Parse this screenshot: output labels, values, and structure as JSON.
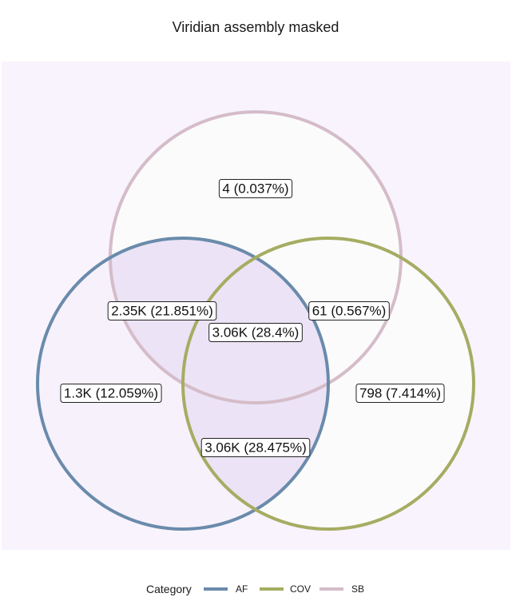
{
  "title": "Viridian assembly masked",
  "legend": {
    "title": "Category",
    "items": [
      {
        "label": "AF",
        "color": "#6a8bab"
      },
      {
        "label": "COV",
        "color": "#a6ac62"
      },
      {
        "label": "SB",
        "color": "#d5bcc9"
      }
    ]
  },
  "sets": [
    "AF",
    "COV",
    "SB"
  ],
  "regions": [
    {
      "id": "sb-only",
      "sets": [
        "SB"
      ],
      "label": "4 (0.037%)",
      "count": 4,
      "percent": 0.037
    },
    {
      "id": "af-sb",
      "sets": [
        "AF",
        "SB"
      ],
      "label": "2.35K (21.851%)",
      "count": 2350,
      "percent": 21.851
    },
    {
      "id": "cov-sb",
      "sets": [
        "COV",
        "SB"
      ],
      "label": "61 (0.567%)",
      "count": 61,
      "percent": 0.567
    },
    {
      "id": "af-cov-sb",
      "sets": [
        "AF",
        "COV",
        "SB"
      ],
      "label": "3.06K (28.4%)",
      "count": 3060,
      "percent": 28.4
    },
    {
      "id": "af-only",
      "sets": [
        "AF"
      ],
      "label": "1.3K (12.059%)",
      "count": 1300,
      "percent": 12.059
    },
    {
      "id": "cov-only",
      "sets": [
        "COV"
      ],
      "label": "798 (7.414%)",
      "count": 798,
      "percent": 7.414
    },
    {
      "id": "af-cov",
      "sets": [
        "AF",
        "COV"
      ],
      "label": "3.06K (28.475%)",
      "count": 3060,
      "percent": 28.475
    }
  ],
  "colors": {
    "panel_background": "#f8f3fd",
    "region_fill_low": "#fbfbfb",
    "region_fill_high": "#ece3f6"
  }
}
